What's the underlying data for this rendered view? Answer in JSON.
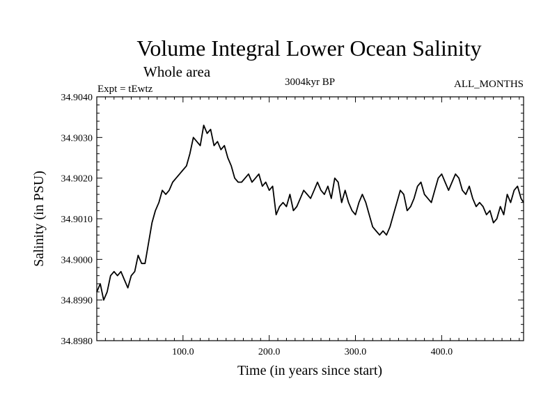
{
  "chart_data": {
    "type": "line",
    "title": "Volume Integral Lower Ocean Salinity",
    "subtitle": "Whole area",
    "experiment_label": "Expt = tEwtz",
    "period_label": "3004kyr BP",
    "months_label": "ALL_MONTHS",
    "xlabel": "Time (in years since start)",
    "ylabel": "Salinity (in PSU)",
    "xlim": [
      0,
      495
    ],
    "ylim": [
      34.898,
      34.904
    ],
    "x_ticks": [
      100,
      200,
      300,
      400
    ],
    "x_tick_labels": [
      "100.0",
      "200.0",
      "300.0",
      "400.0"
    ],
    "y_ticks": [
      34.898,
      34.899,
      34.9,
      34.901,
      34.902,
      34.903,
      34.904
    ],
    "y_tick_labels": [
      "34.8980",
      "34.8990",
      "34.9000",
      "34.9010",
      "34.9020",
      "34.9030",
      "34.9040"
    ],
    "grid": false,
    "series": [
      {
        "name": "Volume integral lower ocean salinity",
        "x": [
          0,
          4,
          8,
          12,
          16,
          20,
          24,
          28,
          32,
          36,
          40,
          44,
          48,
          52,
          56,
          60,
          64,
          68,
          72,
          76,
          80,
          84,
          88,
          92,
          96,
          100,
          104,
          108,
          112,
          116,
          120,
          124,
          128,
          132,
          136,
          140,
          144,
          148,
          152,
          156,
          160,
          164,
          168,
          172,
          176,
          180,
          184,
          188,
          192,
          196,
          200,
          204,
          208,
          212,
          216,
          220,
          224,
          228,
          232,
          236,
          240,
          244,
          248,
          252,
          256,
          260,
          264,
          268,
          272,
          276,
          280,
          284,
          288,
          292,
          296,
          300,
          304,
          308,
          312,
          316,
          320,
          324,
          328,
          332,
          336,
          340,
          344,
          348,
          352,
          356,
          360,
          364,
          368,
          372,
          376,
          380,
          384,
          388,
          392,
          396,
          400,
          404,
          408,
          412,
          416,
          420,
          424,
          428,
          432,
          436,
          440,
          444,
          448,
          452,
          456,
          460,
          464,
          468,
          472,
          476,
          480,
          484,
          488,
          492,
          495
        ],
        "values": [
          34.8992,
          34.8994,
          34.899,
          34.8992,
          34.8996,
          34.8997,
          34.8996,
          34.8997,
          34.8995,
          34.8993,
          34.8996,
          34.8997,
          34.9001,
          34.8999,
          34.8999,
          34.9004,
          34.9009,
          34.9012,
          34.9014,
          34.9017,
          34.9016,
          34.9017,
          34.9019,
          34.902,
          34.9021,
          34.9022,
          34.9023,
          34.9026,
          34.903,
          34.9029,
          34.9028,
          34.9033,
          34.9031,
          34.9032,
          34.9028,
          34.9029,
          34.9027,
          34.9028,
          34.9025,
          34.9023,
          34.902,
          34.9019,
          34.9019,
          34.902,
          34.9021,
          34.9019,
          34.902,
          34.9021,
          34.9018,
          34.9019,
          34.9017,
          34.9018,
          34.9011,
          34.9013,
          34.9014,
          34.9013,
          34.9016,
          34.9012,
          34.9013,
          34.9015,
          34.9017,
          34.9016,
          34.9015,
          34.9017,
          34.9019,
          34.9017,
          34.9016,
          34.9018,
          34.9015,
          34.902,
          34.9019,
          34.9014,
          34.9017,
          34.9014,
          34.9012,
          34.9011,
          34.9014,
          34.9016,
          34.9014,
          34.9011,
          34.9008,
          34.9007,
          34.9006,
          34.9007,
          34.9006,
          34.9008,
          34.9011,
          34.9014,
          34.9017,
          34.9016,
          34.9012,
          34.9013,
          34.9015,
          34.9018,
          34.9019,
          34.9016,
          34.9015,
          34.9014,
          34.9017,
          34.902,
          34.9021,
          34.9019,
          34.9017,
          34.9019,
          34.9021,
          34.902,
          34.9017,
          34.9016,
          34.9018,
          34.9015,
          34.9013,
          34.9014,
          34.9013,
          34.9011,
          34.9012,
          34.9009,
          34.901,
          34.9013,
          34.9011,
          34.9016,
          34.9014,
          34.9017,
          34.9018,
          34.9015,
          34.9014
        ]
      }
    ]
  }
}
